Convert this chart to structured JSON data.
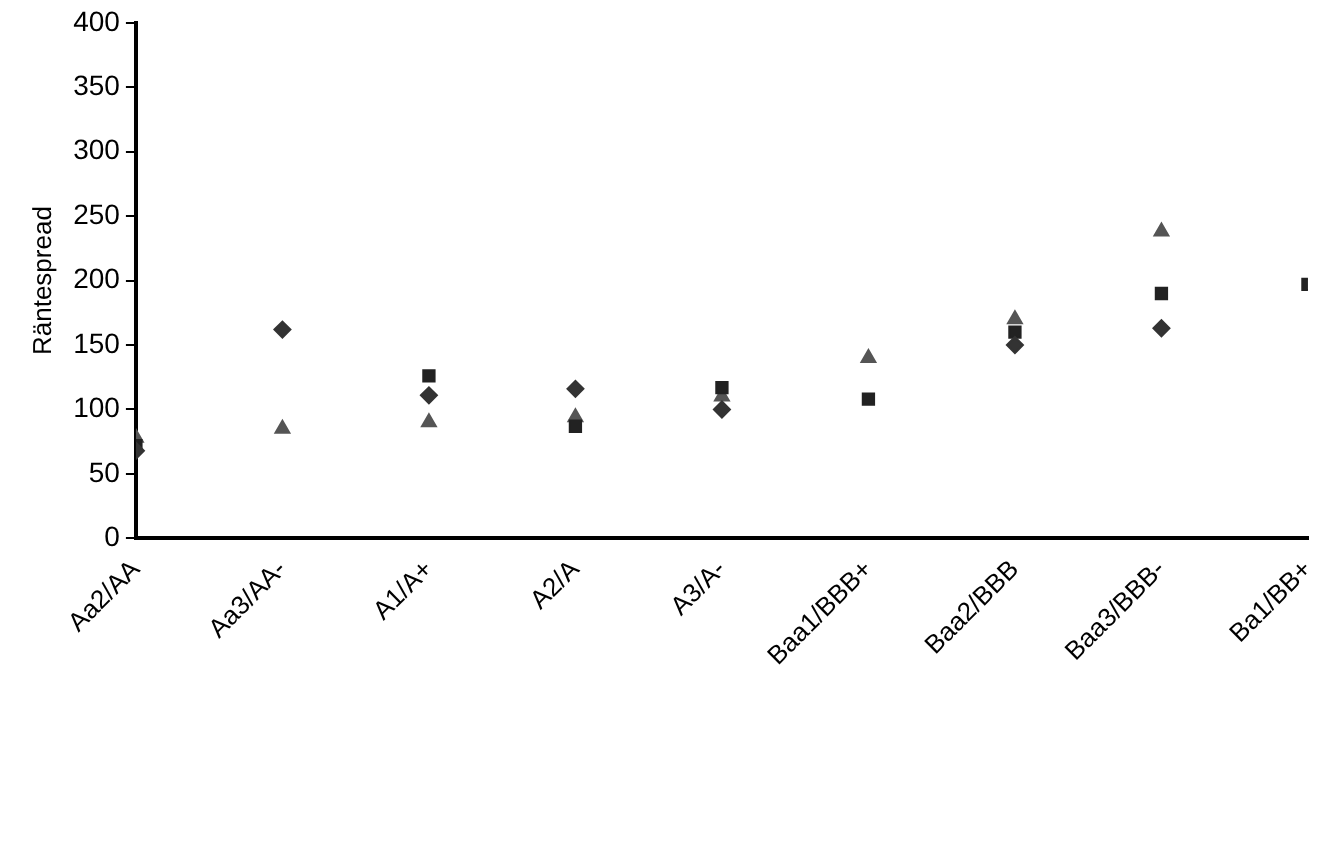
{
  "chart_data": {
    "type": "scatter",
    "ylabel": "Räntespread",
    "categories": [
      "Aa2/AA",
      "Aa3/AA-",
      "A1/A+",
      "A2/A",
      "A3/A-",
      "Baa1/BBB+",
      "Baa2/BBB",
      "Baa3/BBB-",
      "Ba1/BB+"
    ],
    "ylim": [
      0,
      400
    ],
    "yticks": [
      0,
      50,
      100,
      150,
      200,
      250,
      300,
      350,
      400
    ],
    "grid": false,
    "legend": false,
    "series": [
      {
        "color": "#333333",
        "marker": "diamond",
        "values": [
          68,
          162,
          111,
          116,
          100,
          null,
          150,
          163,
          null
        ]
      },
      {
        "color": "#222222",
        "marker": "square",
        "values": [
          72,
          null,
          126,
          87,
          117,
          108,
          160,
          190,
          197
        ]
      },
      {
        "color": "#555555",
        "marker": "triangle",
        "values": [
          78,
          85,
          90,
          94,
          110,
          140,
          170,
          238,
          null
        ]
      }
    ]
  }
}
